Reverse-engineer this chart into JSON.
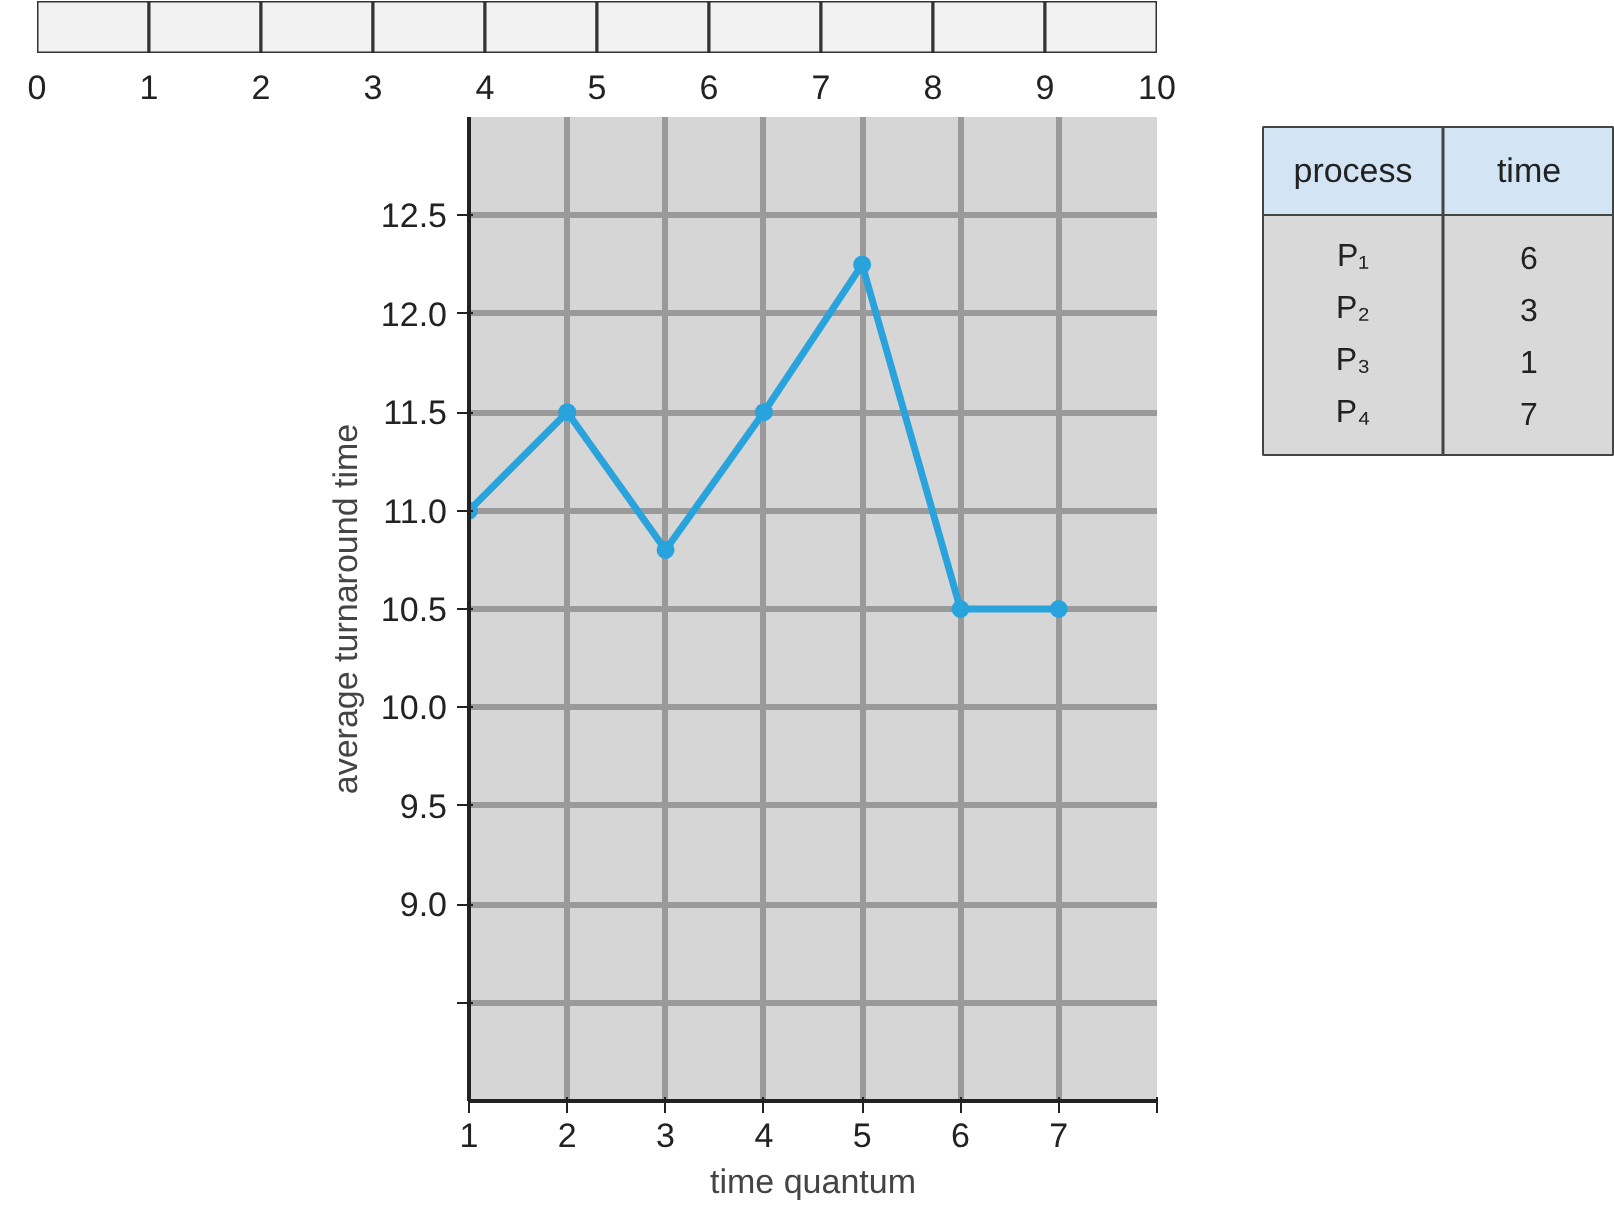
{
  "chart_data": [
    {
      "type": "bar",
      "orientation": "horizontal",
      "stacked": true,
      "tick_labels": "x",
      "categories": [
        null
      ],
      "xlim": [
        0,
        10
      ],
      "xticks": [
        0,
        1,
        2,
        3,
        4,
        5,
        6,
        7,
        8,
        9,
        10
      ],
      "series": [
        {
          "color": "#f2f2f2",
          "values": [
            1
          ]
        },
        {
          "color": "#f2f2f2",
          "values": [
            1
          ]
        },
        {
          "color": "#f2f2f2",
          "values": [
            1
          ]
        },
        {
          "color": "#f2f2f2",
          "values": [
            1
          ]
        },
        {
          "color": "#f2f2f2",
          "values": [
            1
          ]
        },
        {
          "color": "#f2f2f2",
          "values": [
            1
          ]
        },
        {
          "color": "#f2f2f2",
          "values": [
            1
          ]
        },
        {
          "color": "#f2f2f2",
          "values": [
            1
          ]
        },
        {
          "color": "#f2f2f2",
          "values": [
            1
          ]
        },
        {
          "color": "#f2f2f2",
          "values": [
            1
          ]
        }
      ]
    },
    {
      "type": "line",
      "xlabel": "time quantum",
      "ylabel": "average turnaround time",
      "x": [
        1,
        2,
        3,
        4,
        5,
        6,
        7
      ],
      "values": [
        11.0,
        11.5,
        10.8,
        11.5,
        12.25,
        10.5,
        10.5
      ],
      "color": "#29a3dc",
      "marker": "circle",
      "line_style": "solid",
      "xlim": [
        1,
        8
      ],
      "xticks": [
        1,
        2,
        3,
        4,
        5,
        6,
        7,
        {
          "value": 8,
          "label": null
        }
      ],
      "ylim": [
        8.0,
        13.0
      ],
      "yticks": [
        {
          "value": 8.5,
          "label": null
        },
        {
          "value": 9,
          "label": "9.0"
        },
        9.5,
        {
          "value": 10,
          "label": "10.0"
        },
        10.5,
        {
          "value": 11,
          "label": "11.0"
        },
        11.5,
        {
          "value": 12,
          "label": "12.0"
        },
        12.5
      ],
      "grid": true
    },
    {
      "type": "other",
      "annotations": [
        "process",
        "time",
        "P₁",
        "6",
        "P₂",
        "3",
        "P₃",
        "1",
        "P₄",
        "7"
      ]
    }
  ]
}
